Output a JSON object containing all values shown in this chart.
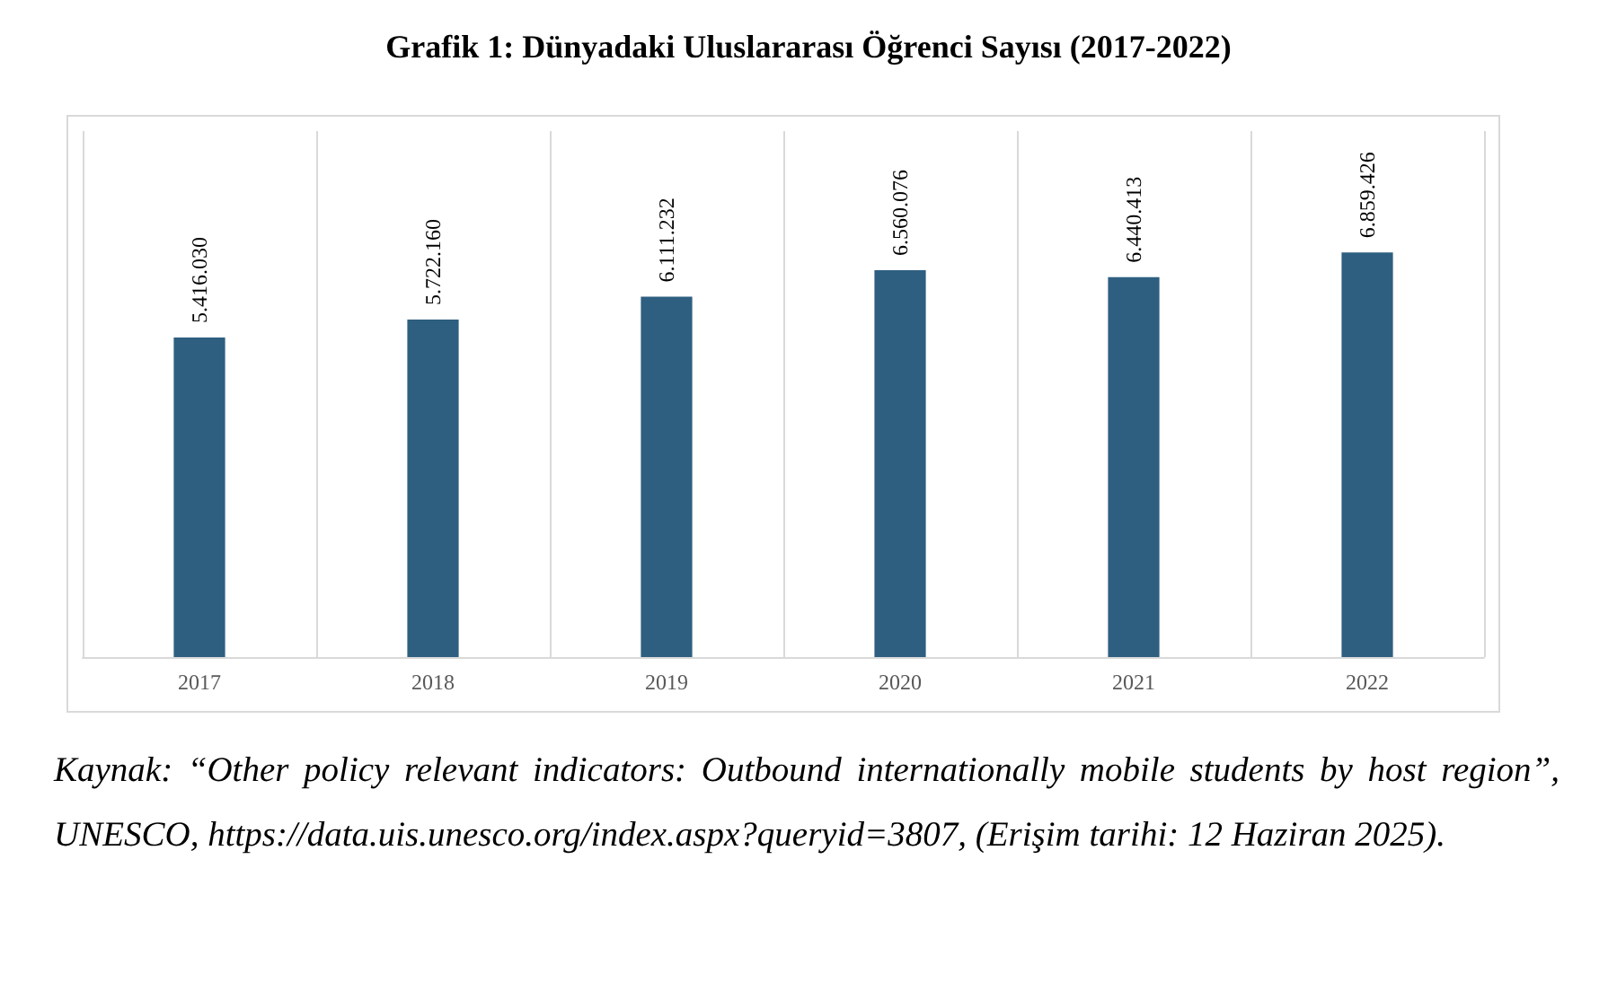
{
  "chart_data": {
    "type": "bar",
    "title": "Grafik 1: Dünyadaki Uluslararası Öğrenci Sayısı (2017-2022)",
    "categories": [
      "2017",
      "2018",
      "2019",
      "2020",
      "2021",
      "2022"
    ],
    "values": [
      5416030,
      5722160,
      6111232,
      6560076,
      6440413,
      6859426
    ],
    "value_labels": [
      "5.416.030",
      "5.722.160",
      "6.111.232",
      "6.560.076",
      "6.440.413",
      "6.859.426"
    ],
    "color": "#2e5f80",
    "grid": "x",
    "annotations": [
      "Kaynak: “Other policy relevant indicators: Outbound internationally mobile students by host region”, UNESCO, https://data.uis.unesco.org/index.aspx?queryid=3807, (Erişim tarihi: 12 Haziran 2025)."
    ]
  }
}
